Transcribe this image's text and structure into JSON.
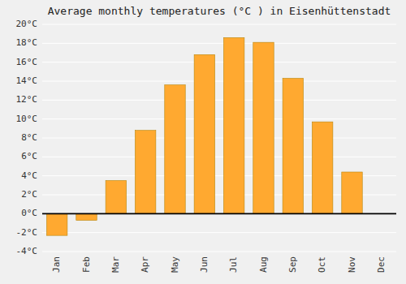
{
  "chart_data": {
    "type": "bar",
    "title": "Average monthly temperatures (°C ) in Eisenhüttenstadt",
    "categories": [
      "Jan",
      "Feb",
      "Mar",
      "Apr",
      "May",
      "Jun",
      "Jul",
      "Aug",
      "Sep",
      "Oct",
      "Nov",
      "Dec"
    ],
    "values": [
      -2.3,
      -0.7,
      3.5,
      8.8,
      13.6,
      16.8,
      18.6,
      18.1,
      14.3,
      9.7,
      4.4,
      0.0
    ],
    "color": "#FFA930",
    "ylim": [
      -4,
      20
    ],
    "yticks": [
      {
        "value": -4,
        "label": "-4°C"
      },
      {
        "value": -2,
        "label": "-2°C"
      },
      {
        "value": 0,
        "label": "0°C"
      },
      {
        "value": 2,
        "label": "2°C"
      },
      {
        "value": 4,
        "label": "4°C"
      },
      {
        "value": 6,
        "label": "6°C"
      },
      {
        "value": 8,
        "label": "8°C"
      },
      {
        "value": 10,
        "label": "10°C"
      },
      {
        "value": 12,
        "label": "12°C"
      },
      {
        "value": 14,
        "label": "14°C"
      },
      {
        "value": 16,
        "label": "16°C"
      },
      {
        "value": 18,
        "label": "18°C"
      },
      {
        "value": 20,
        "label": "20°C"
      }
    ],
    "grid": true
  }
}
